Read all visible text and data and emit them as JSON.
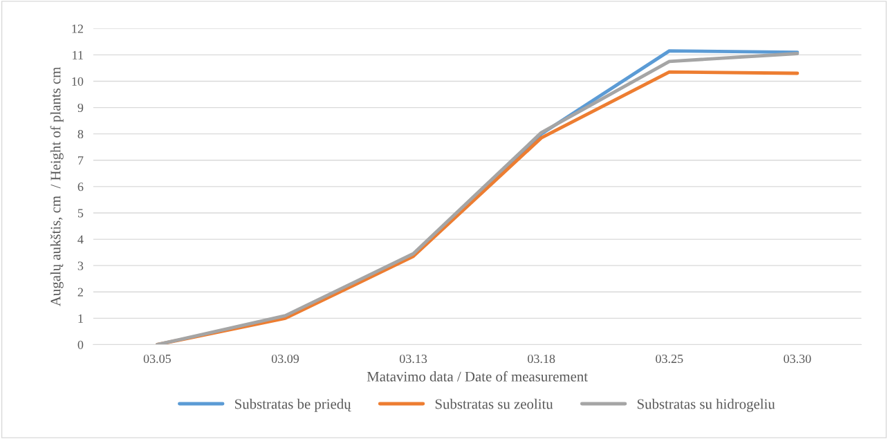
{
  "chart_data": {
    "type": "line",
    "xlabel": "Matavimo data / Date of measurement",
    "ylabel": "Augalų aukštis, cm  / Height of plants cm",
    "categories": [
      "03.05",
      "03.09",
      "03.13",
      "03.18",
      "03.25",
      "03.30"
    ],
    "series": [
      {
        "name": "Substratas be priedų",
        "color": "#5b9bd5",
        "values": [
          null,
          null,
          3.4,
          8.0,
          11.15,
          11.1
        ]
      },
      {
        "name": "Substratas su zeolitu",
        "color": "#ed7d31",
        "values": [
          0,
          1.0,
          3.35,
          7.85,
          10.35,
          10.3
        ]
      },
      {
        "name": "Substratas su hidrogeliu",
        "color": "#a5a5a5",
        "values": [
          0,
          1.1,
          3.45,
          8.05,
          10.75,
          11.05
        ]
      }
    ],
    "ylim": [
      0,
      12
    ],
    "yticks": [
      0,
      1,
      2,
      3,
      4,
      5,
      6,
      7,
      8,
      9,
      10,
      11,
      12
    ],
    "grid": "y",
    "legend": "bottom",
    "marker": "none",
    "line_style": "solid"
  }
}
